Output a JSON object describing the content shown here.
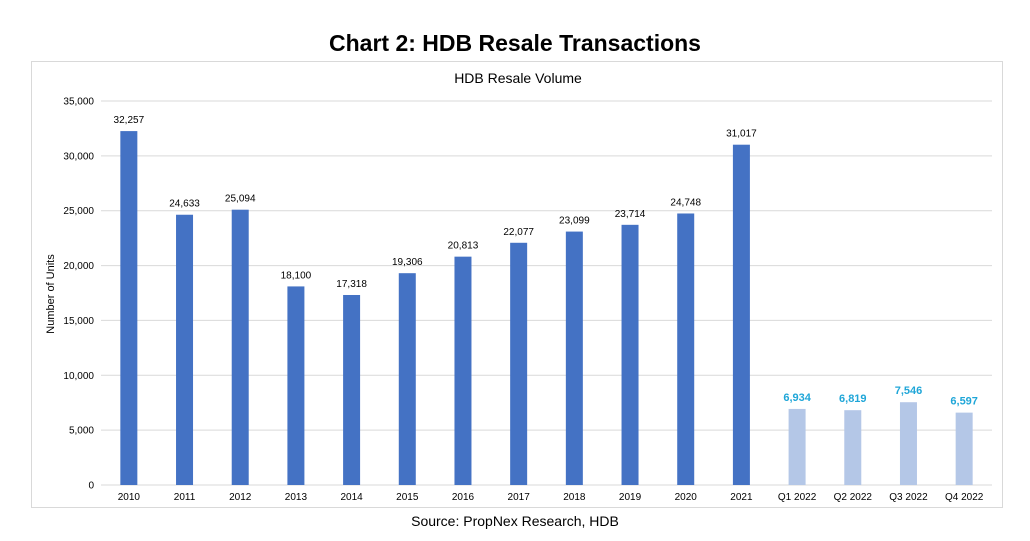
{
  "page": {
    "title": "Chart 2: HDB Resale Transactions",
    "source": "Source: PropNex Research, HDB"
  },
  "chart_data": {
    "type": "bar",
    "title": "HDB Resale Volume",
    "xlabel": "",
    "ylabel": "Number of Units",
    "ylim": [
      0,
      35000
    ],
    "yticks": [
      0,
      5000,
      10000,
      15000,
      20000,
      25000,
      30000,
      35000
    ],
    "ytick_labels": [
      "0",
      "5,000",
      "10,000",
      "15,000",
      "20,000",
      "25,000",
      "30,000",
      "35,000"
    ],
    "grid": true,
    "legend": "none",
    "categories": [
      "2010",
      "2011",
      "2012",
      "2013",
      "2014",
      "2015",
      "2016",
      "2017",
      "2018",
      "2019",
      "2020",
      "2021",
      "Q1 2022",
      "Q2 2022",
      "Q3 2022",
      "Q4 2022"
    ],
    "values": [
      32257,
      24633,
      25094,
      18100,
      17318,
      19306,
      20813,
      22077,
      23099,
      23714,
      24748,
      31017,
      6934,
      6819,
      7546,
      6597
    ],
    "value_labels": [
      "32,257",
      "24,633",
      "25,094",
      "18,100",
      "17,318",
      "19,306",
      "20,813",
      "22,077",
      "23,099",
      "23,714",
      "24,748",
      "31,017",
      "6,934",
      "6,819",
      "7,546",
      "6,597"
    ],
    "group": [
      "annual",
      "annual",
      "annual",
      "annual",
      "annual",
      "annual",
      "annual",
      "annual",
      "annual",
      "annual",
      "annual",
      "annual",
      "quarterly",
      "quarterly",
      "quarterly",
      "quarterly"
    ],
    "colors": {
      "annual_bar": "#4472c4",
      "quarterly_bar": "#b4c7e7",
      "annual_label": "#000000",
      "quarterly_label": "#1fa6d8",
      "grid": "#d9d9d9"
    }
  }
}
